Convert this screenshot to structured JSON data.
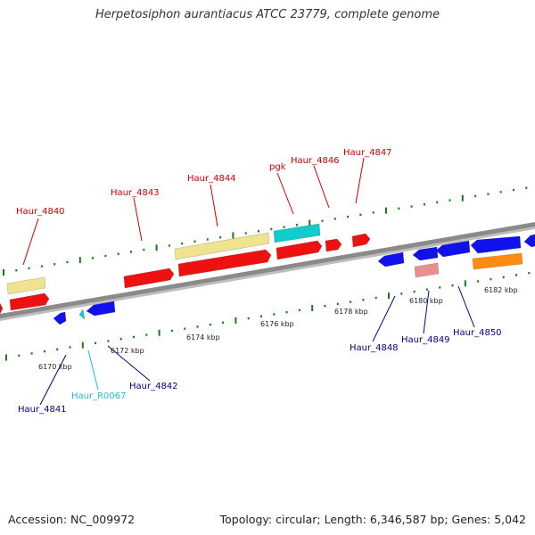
{
  "title": "Herpetosiphon aurantiacus ATCC 23779, complete genome",
  "footer": {
    "accession": "Accession: NC_009972",
    "stats": "Topology: circular; Length: 6,346,587 bp; Genes: 5,042"
  },
  "colors": {
    "backbone": "#8a8a8a",
    "tick": "#1a7a1a",
    "cds_red": "#ee1111",
    "cds_blue": "#1111ee",
    "rna_cyan": "#11cccc",
    "pseudo_khaki": "#efe38f",
    "pink": "#e88f8f",
    "orange": "#ff8c11",
    "label_red": "#cc0000",
    "label_navy": "#000088",
    "label_cyan": "#22bbdd"
  },
  "ruler_labels": [
    "6170 kbp",
    "6172 kbp",
    "6174 kbp",
    "6176 kbp",
    "6178 kbp",
    "6180 kbp",
    "6182 kbp"
  ],
  "gene_labels": {
    "top": [
      "Haur_4840",
      "Haur_4843",
      "Haur_4844",
      "pgk",
      "Haur_4846",
      "Haur_4847"
    ],
    "bottom": [
      "Haur_4841",
      "Haur_R0067",
      "Haur_4842",
      "Haur_4848",
      "Haur_4849",
      "Haur_4850"
    ]
  }
}
